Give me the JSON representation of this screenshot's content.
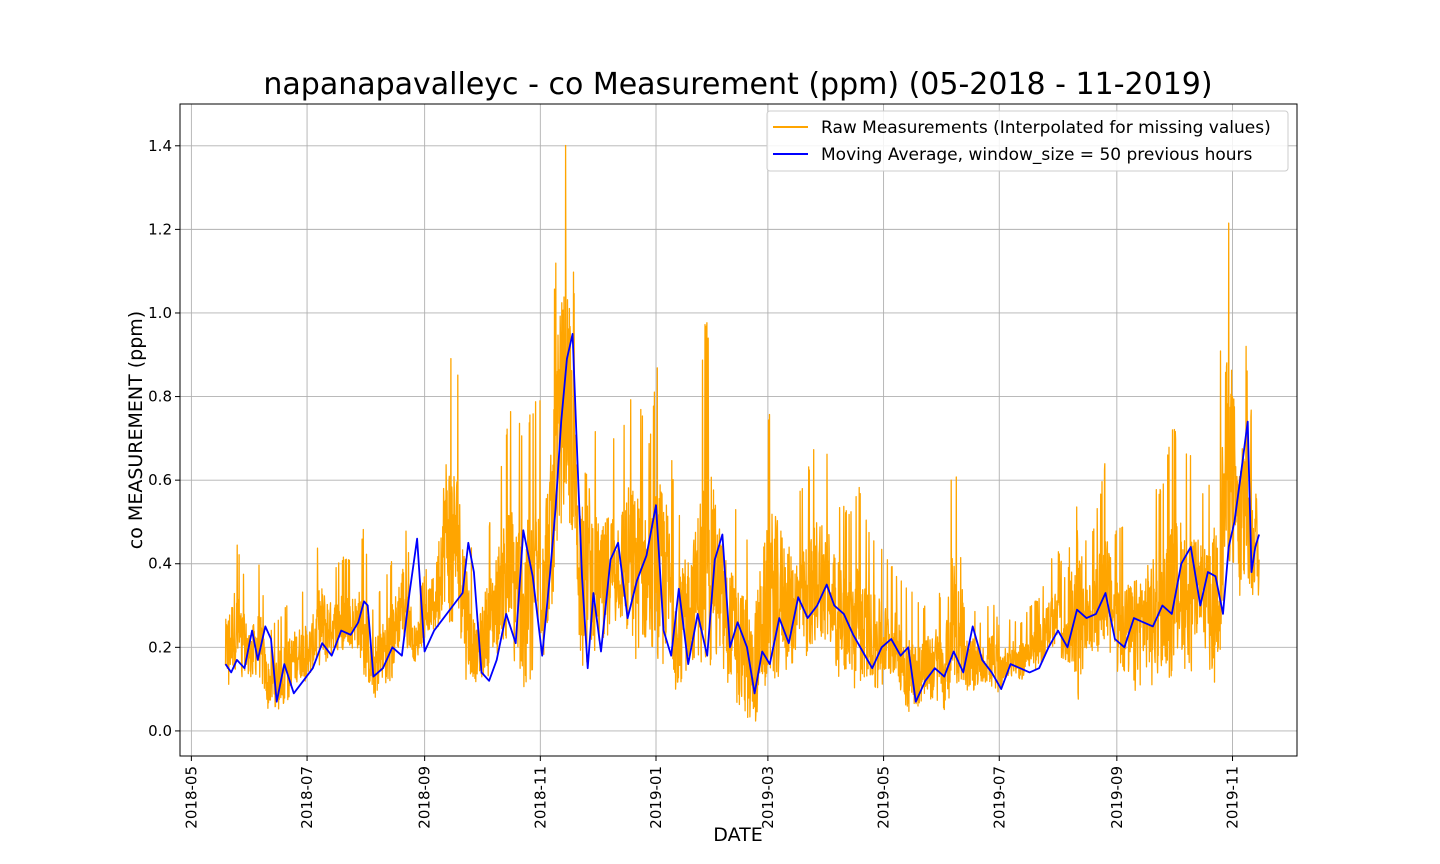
{
  "chart_data": {
    "type": "line",
    "title": "napanapavalleyc - co Measurement (ppm) (05-2018 - 11-2019)",
    "xlabel": "DATE",
    "ylabel": "co MEASUREMENT (ppm)",
    "ylim": [
      -0.06,
      1.5
    ],
    "xlim": [
      "2018-04-25",
      "2019-12-05"
    ],
    "grid": true,
    "legend_position": "top-right",
    "x_ticks": [
      "2018-05",
      "2018-07",
      "2018-09",
      "2018-11",
      "2019-01",
      "2019-03",
      "2019-05",
      "2019-07",
      "2019-09",
      "2019-11"
    ],
    "x_tick_dates": [
      "2018-05-01",
      "2018-07-01",
      "2018-09-01",
      "2018-11-01",
      "2019-01-01",
      "2019-03-01",
      "2019-05-01",
      "2019-07-01",
      "2019-09-01",
      "2019-11-01"
    ],
    "y_ticks": [
      0.0,
      0.2,
      0.4,
      0.6,
      0.8,
      1.0,
      1.2,
      1.4
    ],
    "y_tick_labels": [
      "0.0",
      "0.2",
      "0.4",
      "0.6",
      "0.8",
      "1.0",
      "1.2",
      "1.4"
    ],
    "series": [
      {
        "name": "Raw Measurements (Interpolated for missing values)",
        "color": "#ffa500",
        "style": "spiky",
        "x": [
          "2018-05-19",
          "2018-05-24",
          "2018-06-01",
          "2018-06-06",
          "2018-06-10",
          "2018-06-14",
          "2018-06-20",
          "2018-06-26",
          "2018-07-03",
          "2018-07-08",
          "2018-07-14",
          "2018-07-20",
          "2018-07-26",
          "2018-07-31",
          "2018-08-04",
          "2018-08-10",
          "2018-08-16",
          "2018-08-21",
          "2018-08-27",
          "2018-09-02",
          "2018-09-07",
          "2018-09-12",
          "2018-09-18",
          "2018-09-23",
          "2018-09-28",
          "2018-10-03",
          "2018-10-08",
          "2018-10-13",
          "2018-10-18",
          "2018-10-23",
          "2018-10-28",
          "2018-11-02",
          "2018-11-07",
          "2018-11-11",
          "2018-11-15",
          "2018-11-18",
          "2018-11-21",
          "2018-11-24",
          "2018-11-28",
          "2018-12-03",
          "2018-12-08",
          "2018-12-13",
          "2018-12-18",
          "2018-12-23",
          "2018-12-28",
          "2019-01-02",
          "2019-01-07",
          "2019-01-12",
          "2019-01-17",
          "2019-01-22",
          "2019-01-27",
          "2019-02-01",
          "2019-02-06",
          "2019-02-11",
          "2019-02-16",
          "2019-02-21",
          "2019-02-26",
          "2019-03-03",
          "2019-03-08",
          "2019-03-13",
          "2019-03-18",
          "2019-03-23",
          "2019-03-28",
          "2019-04-03",
          "2019-04-08",
          "2019-04-13",
          "2019-04-18",
          "2019-04-23",
          "2019-04-28",
          "2019-05-03",
          "2019-05-08",
          "2019-05-13",
          "2019-05-18",
          "2019-05-23",
          "2019-05-28",
          "2019-06-02",
          "2019-06-07",
          "2019-06-12",
          "2019-06-17",
          "2019-06-22",
          "2019-06-27",
          "2019-07-02",
          "2019-07-07",
          "2019-07-12",
          "2019-07-17",
          "2019-07-22",
          "2019-07-27",
          "2019-08-01",
          "2019-08-06",
          "2019-08-11",
          "2019-08-16",
          "2019-08-21",
          "2019-08-26",
          "2019-08-31",
          "2019-09-05",
          "2019-09-10",
          "2019-09-15",
          "2019-09-20",
          "2019-09-25",
          "2019-09-30",
          "2019-10-05",
          "2019-10-10",
          "2019-10-15",
          "2019-10-20",
          "2019-10-25",
          "2019-10-29",
          "2019-11-01",
          "2019-11-04",
          "2019-11-07",
          "2019-11-10",
          "2019-11-13",
          "2019-11-15"
        ],
        "high": [
          0.37,
          0.48,
          0.3,
          0.41,
          0.24,
          0.26,
          0.3,
          0.34,
          0.33,
          0.49,
          0.38,
          0.42,
          0.4,
          0.49,
          0.29,
          0.36,
          0.43,
          0.53,
          0.3,
          0.39,
          0.48,
          0.92,
          0.88,
          0.6,
          0.32,
          0.47,
          0.55,
          0.7,
          0.8,
          0.72,
          0.78,
          0.82,
          0.92,
          1.32,
          1.42,
          1.2,
          0.75,
          0.95,
          0.8,
          0.64,
          0.73,
          0.7,
          0.82,
          0.82,
          0.68,
          0.9,
          0.78,
          0.5,
          0.6,
          0.7,
          1.02,
          0.79,
          0.62,
          0.55,
          0.52,
          0.4,
          0.66,
          0.8,
          0.7,
          0.6,
          0.58,
          0.64,
          0.74,
          0.64,
          0.55,
          0.52,
          0.6,
          0.48,
          0.45,
          0.42,
          0.38,
          0.35,
          0.32,
          0.3,
          0.37,
          0.29,
          0.73,
          0.3,
          0.3,
          0.25,
          0.33,
          0.24,
          0.27,
          0.26,
          0.3,
          0.32,
          0.4,
          0.44,
          0.34,
          0.85,
          0.43,
          0.52,
          0.65,
          0.48,
          0.5,
          0.52,
          0.55,
          0.6,
          0.58,
          0.73,
          0.72,
          0.66,
          0.58,
          0.6,
          0.86,
          1.29,
          1.19,
          0.79,
          1.04,
          0.74,
          0.85,
          0.52
        ],
        "low": [
          0.09,
          0.12,
          0.13,
          0.1,
          0.05,
          0.04,
          0.07,
          0.1,
          0.13,
          0.13,
          0.18,
          0.19,
          0.2,
          0.12,
          0.07,
          0.1,
          0.13,
          0.22,
          0.15,
          0.22,
          0.24,
          0.26,
          0.22,
          0.12,
          0.1,
          0.12,
          0.16,
          0.22,
          0.13,
          0.1,
          0.1,
          0.16,
          0.26,
          0.48,
          0.55,
          0.42,
          0.18,
          0.15,
          0.18,
          0.2,
          0.22,
          0.25,
          0.22,
          0.14,
          0.18,
          0.12,
          0.15,
          0.09,
          0.12,
          0.13,
          0.12,
          0.19,
          0.12,
          0.08,
          0.03,
          0.01,
          0.05,
          0.08,
          0.14,
          0.15,
          0.16,
          0.16,
          0.2,
          0.2,
          0.12,
          0.1,
          0.09,
          0.1,
          0.1,
          0.1,
          0.12,
          0.03,
          0.04,
          0.08,
          0.07,
          0.05,
          0.07,
          0.1,
          0.09,
          0.11,
          0.08,
          0.1,
          0.13,
          0.11,
          0.14,
          0.13,
          0.18,
          0.18,
          0.13,
          0.06,
          0.18,
          0.18,
          0.22,
          0.15,
          0.1,
          0.09,
          0.12,
          0.1,
          0.14,
          0.12,
          0.16,
          0.13,
          0.25,
          0.11,
          0.11,
          0.3,
          0.36,
          0.3,
          0.35,
          0.27,
          0.3,
          0.3
        ]
      },
      {
        "name": "Moving Average, window_size = 50 previous hours",
        "color": "#0000ff",
        "style": "smooth",
        "x": [
          "2018-05-19",
          "2018-05-22",
          "2018-05-25",
          "2018-05-29",
          "2018-06-02",
          "2018-06-05",
          "2018-06-09",
          "2018-06-12",
          "2018-06-15",
          "2018-06-19",
          "2018-06-24",
          "2018-06-29",
          "2018-07-04",
          "2018-07-09",
          "2018-07-14",
          "2018-07-19",
          "2018-07-24",
          "2018-07-28",
          "2018-07-31",
          "2018-08-02",
          "2018-08-05",
          "2018-08-10",
          "2018-08-15",
          "2018-08-20",
          "2018-08-24",
          "2018-08-28",
          "2018-09-01",
          "2018-09-06",
          "2018-09-11",
          "2018-09-16",
          "2018-09-21",
          "2018-09-24",
          "2018-09-27",
          "2018-10-01",
          "2018-10-05",
          "2018-10-09",
          "2018-10-14",
          "2018-10-19",
          "2018-10-23",
          "2018-10-28",
          "2018-11-02",
          "2018-11-06",
          "2018-11-09",
          "2018-11-12",
          "2018-11-15",
          "2018-11-18",
          "2018-11-20",
          "2018-11-23",
          "2018-11-26",
          "2018-11-29",
          "2018-12-03",
          "2018-12-08",
          "2018-12-12",
          "2018-12-17",
          "2018-12-22",
          "2018-12-27",
          "2019-01-01",
          "2019-01-05",
          "2019-01-09",
          "2019-01-13",
          "2019-01-18",
          "2019-01-23",
          "2019-01-28",
          "2019-02-01",
          "2019-02-05",
          "2019-02-09",
          "2019-02-13",
          "2019-02-18",
          "2019-02-22",
          "2019-02-26",
          "2019-03-02",
          "2019-03-07",
          "2019-03-12",
          "2019-03-17",
          "2019-03-22",
          "2019-03-27",
          "2019-04-01",
          "2019-04-05",
          "2019-04-10",
          "2019-04-15",
          "2019-04-20",
          "2019-04-25",
          "2019-04-30",
          "2019-05-05",
          "2019-05-10",
          "2019-05-14",
          "2019-05-18",
          "2019-05-23",
          "2019-05-28",
          "2019-06-02",
          "2019-06-07",
          "2019-06-12",
          "2019-06-17",
          "2019-06-22",
          "2019-06-27",
          "2019-07-02",
          "2019-07-07",
          "2019-07-12",
          "2019-07-17",
          "2019-07-22",
          "2019-07-27",
          "2019-08-01",
          "2019-08-06",
          "2019-08-11",
          "2019-08-16",
          "2019-08-21",
          "2019-08-26",
          "2019-08-31",
          "2019-09-05",
          "2019-09-10",
          "2019-09-15",
          "2019-09-20",
          "2019-09-25",
          "2019-09-30",
          "2019-10-05",
          "2019-10-10",
          "2019-10-15",
          "2019-10-19",
          "2019-10-23",
          "2019-10-27",
          "2019-10-30",
          "2019-11-02",
          "2019-11-05",
          "2019-11-07",
          "2019-11-09",
          "2019-11-11",
          "2019-11-13",
          "2019-11-15"
        ],
        "values": [
          0.16,
          0.14,
          0.17,
          0.15,
          0.24,
          0.17,
          0.25,
          0.22,
          0.07,
          0.16,
          0.09,
          0.12,
          0.15,
          0.21,
          0.18,
          0.24,
          0.23,
          0.26,
          0.31,
          0.3,
          0.13,
          0.15,
          0.2,
          0.18,
          0.33,
          0.46,
          0.19,
          0.24,
          0.27,
          0.3,
          0.33,
          0.45,
          0.38,
          0.14,
          0.12,
          0.17,
          0.28,
          0.21,
          0.48,
          0.37,
          0.18,
          0.37,
          0.53,
          0.74,
          0.89,
          0.95,
          0.71,
          0.37,
          0.15,
          0.33,
          0.19,
          0.41,
          0.45,
          0.27,
          0.36,
          0.42,
          0.54,
          0.24,
          0.18,
          0.34,
          0.16,
          0.28,
          0.18,
          0.41,
          0.47,
          0.2,
          0.26,
          0.2,
          0.09,
          0.19,
          0.16,
          0.27,
          0.21,
          0.32,
          0.27,
          0.3,
          0.35,
          0.3,
          0.28,
          0.23,
          0.19,
          0.15,
          0.2,
          0.22,
          0.18,
          0.2,
          0.07,
          0.12,
          0.15,
          0.13,
          0.19,
          0.14,
          0.25,
          0.17,
          0.14,
          0.1,
          0.16,
          0.15,
          0.14,
          0.15,
          0.2,
          0.24,
          0.2,
          0.29,
          0.27,
          0.28,
          0.33,
          0.22,
          0.2,
          0.27,
          0.26,
          0.25,
          0.3,
          0.28,
          0.4,
          0.44,
          0.3,
          0.38,
          0.37,
          0.28,
          0.44,
          0.5,
          0.6,
          0.67,
          0.74,
          0.38,
          0.44,
          0.47
        ]
      }
    ]
  }
}
